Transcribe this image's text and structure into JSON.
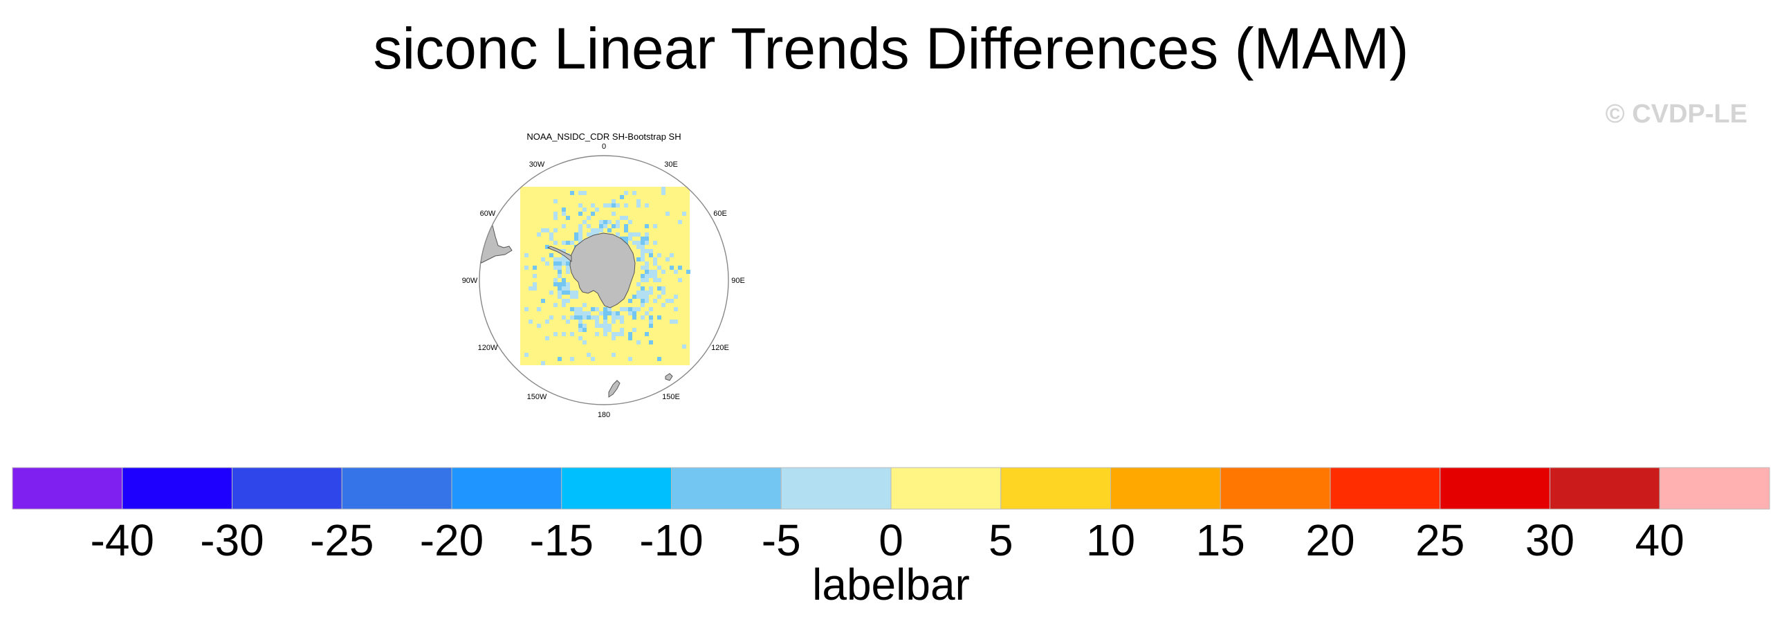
{
  "title": "siconc Linear Trends Differences (MAM)",
  "watermark": "© CVDP-LE",
  "map": {
    "panel_title": "NOAA_NSIDC_CDR SH-Bootstrap SH",
    "projection": "south-polar-stereographic",
    "background_color": "#fff585",
    "land_color": "#bebebe",
    "longitude_labels": [
      "0",
      "30E",
      "60E",
      "90E",
      "120E",
      "150E",
      "180",
      "150W",
      "120W",
      "90W",
      "60W",
      "30W"
    ]
  },
  "labelbar": {
    "title": "labelbar",
    "levels": [
      "-40",
      "-30",
      "-25",
      "-20",
      "-15",
      "-10",
      "-5",
      "0",
      "5",
      "10",
      "15",
      "20",
      "25",
      "30",
      "40"
    ],
    "colors": [
      "#8020f0",
      "#1e00ff",
      "#2f46ea",
      "#3574e8",
      "#1f96ff",
      "#00bfff",
      "#73c6f2",
      "#b2dff2",
      "#fff585",
      "#ffd524",
      "#ffa800",
      "#ff7700",
      "#ff2d00",
      "#e50000",
      "#cc1b1b",
      "#ffb0b0"
    ]
  }
}
